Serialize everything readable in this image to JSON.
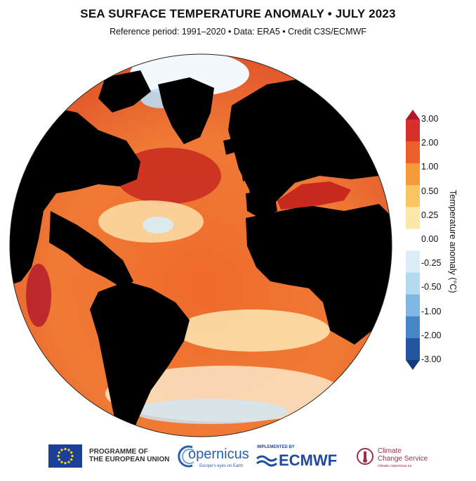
{
  "header": {
    "title": "SEA SURFACE TEMPERATURE ANOMALY • JULY 2023",
    "subtitle": "Reference period: 1991–2020 • Data: ERA5 • Credit C3S/ECMWF"
  },
  "colorbar": {
    "title": "Temperature anomaly (°C)",
    "ticks": [
      "3.00",
      "2.00",
      "1.00",
      "0.50",
      "0.25",
      "0.00",
      "-0.25",
      "-0.50",
      "-1.00",
      "-2.00",
      "-3.00"
    ],
    "colors": [
      "#b2182b",
      "#d6302a",
      "#ec5f2b",
      "#f59a3a",
      "#fcc564",
      "#fde7a8",
      "#ffffff",
      "#dbeef8",
      "#b4daf2",
      "#7fb8e4",
      "#4586c6",
      "#24559f",
      "#16397a"
    ]
  },
  "footer": {
    "eu_line1": "PROGRAMME OF",
    "eu_line2": "THE EUROPEAN UNION",
    "copernicus": "opernicus",
    "copernicus_tagline": "Europe's eyes on Earth",
    "ecmwf_implemented": "IMPLEMENTED BY",
    "ecmwf": "ECMWF",
    "c3s_line1": "Climate",
    "c3s_line2": "Change Service",
    "c3s_url": "climate.copernicus.eu"
  }
}
